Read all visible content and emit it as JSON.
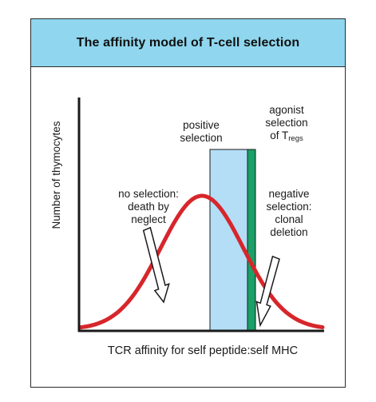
{
  "title": "The affinity model of T-cell selection",
  "axes": {
    "y_label": "Number of thymocytes",
    "x_label": "TCR affinity for self peptide:self MHC"
  },
  "annotations": {
    "no_selection": [
      "no selection:",
      "death by",
      "neglect"
    ],
    "positive_selection": [
      "positive",
      "selection"
    ],
    "agonist_selection": [
      "agonist",
      "selection",
      "of T"
    ],
    "agonist_subscript": "regs",
    "negative_selection": [
      "negative",
      "selection:",
      "clonal",
      "deletion"
    ]
  },
  "colors": {
    "title_bg": "#8fd6ee",
    "curve": "#d7262b",
    "positive_band": "#b3def6",
    "agonist_band": "#1ba067",
    "axis": "#1a1a1a",
    "arrow_fill": "#ffffff"
  }
}
